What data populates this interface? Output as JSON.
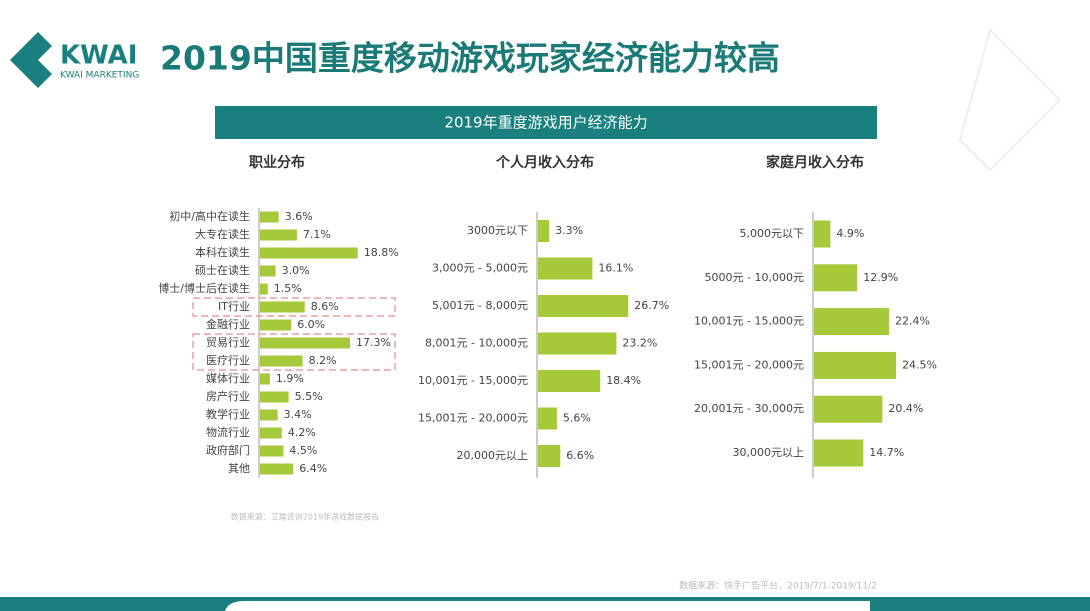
{
  "logo": {
    "brand": "KWAI",
    "tagline": "KWAI MARKETING"
  },
  "title": "2019中国重度移动游戏玩家经济能力较高",
  "banner": "2019年重度游戏用户经济能力",
  "chart_data": [
    {
      "type": "bar",
      "orientation": "horizontal",
      "title": "职业分布",
      "color": "#a6c93a",
      "categories": [
        "初中/高中在读生",
        "大专在读生",
        "本科在读生",
        "硕士在读生",
        "博士/博士后在读生",
        "IT行业",
        "金融行业",
        "贸易行业",
        "医疗行业",
        "媒体行业",
        "房产行业",
        "教学行业",
        "物流行业",
        "政府部门",
        "其他"
      ],
      "values": [
        3.6,
        7.1,
        18.8,
        3.0,
        1.5,
        8.6,
        6.0,
        17.3,
        8.2,
        1.9,
        5.5,
        3.4,
        4.2,
        4.5,
        6.4
      ],
      "value_labels": [
        "3.6%",
        "7.1%",
        "18.8%",
        "3.0%",
        "1.5%",
        "8.6%",
        "6.0%",
        "17.3%",
        "8.2%",
        "1.9%",
        "5.5%",
        "3.4%",
        "4.2%",
        "4.5%",
        "6.4%"
      ],
      "source": "数据来源：艾瑞咨询2019年游戏数据报告"
    },
    {
      "type": "bar",
      "orientation": "horizontal",
      "title": "个人月收入分布",
      "color": "#a6c93a",
      "categories": [
        "3000元以下",
        "3,000元 - 5,000元",
        "5,001元 - 8,000元",
        "8,001元 - 10,000元",
        "10,001元 - 15,000元",
        "15,001元 - 20,000元",
        "20,000元以上"
      ],
      "values": [
        3.3,
        16.1,
        26.7,
        23.2,
        18.4,
        5.6,
        6.6
      ],
      "value_labels": [
        "3.3%",
        "16.1%",
        "26.7%",
        "23.2%",
        "18.4%",
        "5.6%",
        "6.6%"
      ]
    },
    {
      "type": "bar",
      "orientation": "horizontal",
      "title": "家庭月收入分布",
      "color": "#a6c93a",
      "categories": [
        "5,000元以下",
        "5000元 - 10,000元",
        "10,001元 - 15,000元",
        "15,001元 - 20,000元",
        "20,001元 - 30,000元",
        "30,000元以上"
      ],
      "values": [
        4.9,
        12.9,
        22.4,
        24.5,
        20.4,
        14.7
      ],
      "value_labels": [
        "4.9%",
        "12.9%",
        "22.4%",
        "24.5%",
        "20.4%",
        "14.7%"
      ]
    }
  ],
  "footer_source": "数据来源：快手广告平台，2019/7/1-2019/11/2"
}
